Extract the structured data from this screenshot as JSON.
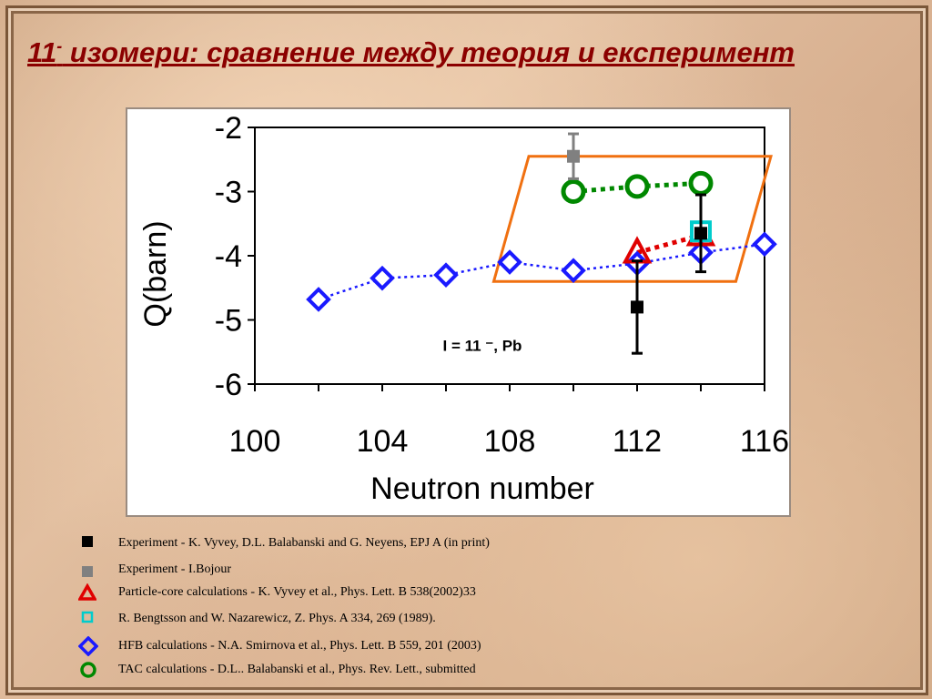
{
  "slide": {
    "title_main": "11",
    "title_sup": "-",
    "title_rest": " изомери: сравнение между теория и експеримент"
  },
  "colors": {
    "title": "#8b0000",
    "experiment_vyvey": "#000000",
    "experiment_bojour": "#808080",
    "particle_core": "#e00000",
    "bengtsson": "#00cccc",
    "hfb": "#1a1aff",
    "tac": "#008800",
    "highlight_box": "#f07010"
  },
  "chart_data": {
    "type": "scatter",
    "xlabel": "Neutron number",
    "ylabel": "Q(barn)",
    "xlim": [
      100,
      116
    ],
    "ylim": [
      -6,
      -2
    ],
    "x_ticks": [
      "100",
      "104",
      "108",
      "112",
      "116"
    ],
    "y_ticks": [
      "-2",
      "-3",
      "-4",
      "-5",
      "-6"
    ],
    "annotation": "I = 11 ⁻, Pb",
    "series": [
      {
        "name": "HFB calculations - N.A. Smirnova et al., Phys. Lett. B 559, 201 (2003)",
        "marker": "diamond",
        "connected": true,
        "x": [
          102,
          104,
          106,
          108,
          110,
          112,
          114,
          116
        ],
        "y": [
          -4.68,
          -4.35,
          -4.3,
          -4.1,
          -4.23,
          -4.12,
          -3.95,
          -3.82
        ]
      },
      {
        "name": "TAC calculations - D.L.. Balabanski et al., Phys. Rev. Lett., submitted",
        "marker": "circle",
        "connected": true,
        "x": [
          110,
          112,
          114
        ],
        "y": [
          -3.0,
          -2.92,
          -2.87
        ]
      },
      {
        "name": "Particle-core calculations - K. Vyvey et al., Phys. Lett. B 538(2002)33",
        "marker": "triangle",
        "connected": true,
        "x": [
          112,
          114
        ],
        "y": [
          -3.95,
          -3.68
        ]
      },
      {
        "name": "R. Bengtsson and W. Nazarewicz, Z. Phys. A 334, 269 (1989).",
        "marker": "square-open",
        "connected": false,
        "x": [
          114
        ],
        "y": [
          -3.62
        ]
      },
      {
        "name": "Experiment - K. Vyvey, D.L. Balabanski and G. Neyens, EPJ A (in print)",
        "marker": "square-filled",
        "connected": false,
        "x": [
          112,
          114
        ],
        "y": [
          -4.8,
          -3.65
        ],
        "err": [
          0.72,
          0.6
        ]
      },
      {
        "name": "Experiment - I.Bojour",
        "marker": "square-filled",
        "connected": false,
        "x": [
          110
        ],
        "y": [
          -2.45
        ],
        "err": [
          0.35
        ]
      }
    ],
    "highlight": {
      "shape": "parallelogram",
      "x_range": [
        107.5,
        116.2
      ],
      "y_range": [
        -4.4,
        -2.45
      ]
    },
    "grid": false
  },
  "legend": {
    "items": [
      {
        "marker": "square-filled",
        "color": "#000000",
        "label": "Experiment - K. Vyvey, D.L. Balabanski and G. Neyens, EPJ A (in print)"
      },
      {
        "marker": "square-filled",
        "color": "#808080",
        "label": "Experiment - I.Bojour"
      },
      {
        "marker": "triangle",
        "color": "#e00000",
        "label": "Particle-core calculations - K. Vyvey et al., Phys. Lett. B 538(2002)33"
      },
      {
        "marker": "square-open",
        "color": "#00cccc",
        "label": "R. Bengtsson and W. Nazarewicz, Z. Phys. A 334, 269 (1989)."
      },
      {
        "marker": "diamond",
        "color": "#1a1aff",
        "label": "HFB calculations - N.A. Smirnova et al., Phys. Lett. B 559, 201 (2003)"
      },
      {
        "marker": "circle",
        "color": "#008800",
        "label": "TAC calculations - D.L.. Balabanski et al., Phys. Rev. Lett., submitted"
      }
    ]
  }
}
